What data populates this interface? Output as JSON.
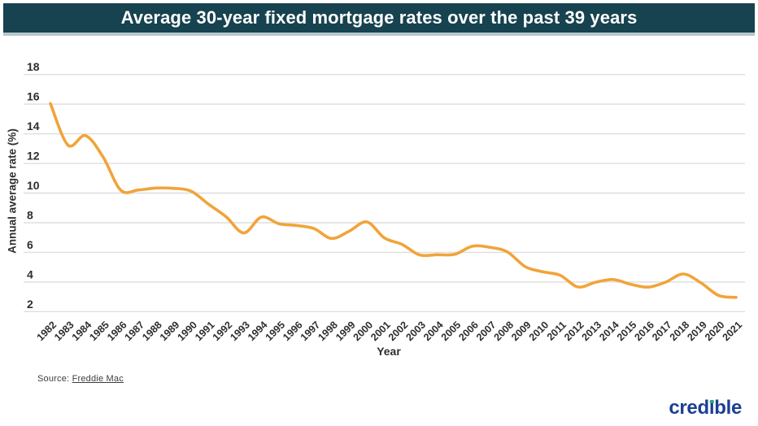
{
  "header": {
    "title": "Average 30-year fixed mortgage rates over the past 39 years",
    "bg_color": "#17424F",
    "strip_color": "#B5C8CD"
  },
  "chart_data": {
    "type": "line",
    "title": "Average 30-year fixed mortgage rates over the past 39 years",
    "xlabel": "Year",
    "ylabel": "Annual average rate (%)",
    "x": [
      1982,
      1983,
      1984,
      1985,
      1986,
      1987,
      1988,
      1989,
      1990,
      1991,
      1992,
      1993,
      1994,
      1995,
      1996,
      1997,
      1998,
      1999,
      2000,
      2001,
      2002,
      2003,
      2004,
      2005,
      2006,
      2007,
      2008,
      2009,
      2010,
      2011,
      2012,
      2013,
      2014,
      2015,
      2016,
      2017,
      2018,
      2019,
      2020,
      2021
    ],
    "values": [
      16.04,
      13.24,
      13.88,
      12.43,
      10.19,
      10.21,
      10.34,
      10.32,
      10.13,
      9.25,
      8.39,
      7.31,
      8.38,
      7.93,
      7.81,
      7.6,
      6.94,
      7.44,
      8.05,
      6.97,
      6.54,
      5.83,
      5.84,
      5.87,
      6.41,
      6.34,
      6.03,
      5.04,
      4.69,
      4.45,
      3.66,
      3.98,
      4.17,
      3.85,
      3.65,
      3.99,
      4.54,
      3.94,
      3.1,
      2.96
    ],
    "ylim": [
      2,
      18
    ],
    "y_ticks": [
      2,
      4,
      6,
      8,
      10,
      12,
      14,
      16,
      18
    ],
    "grid": "horizontal",
    "legend": "none",
    "line_color": "#F1A43A",
    "gridline_color": "#DEDEDE",
    "tick_text_color": "#2E2E2E"
  },
  "footer": {
    "source_prefix": "Source: ",
    "source_link": "Freddie Mac",
    "logo_text": "credible",
    "logo_color": "#1B3F94",
    "logo_dot_color": "#1FA97C"
  }
}
